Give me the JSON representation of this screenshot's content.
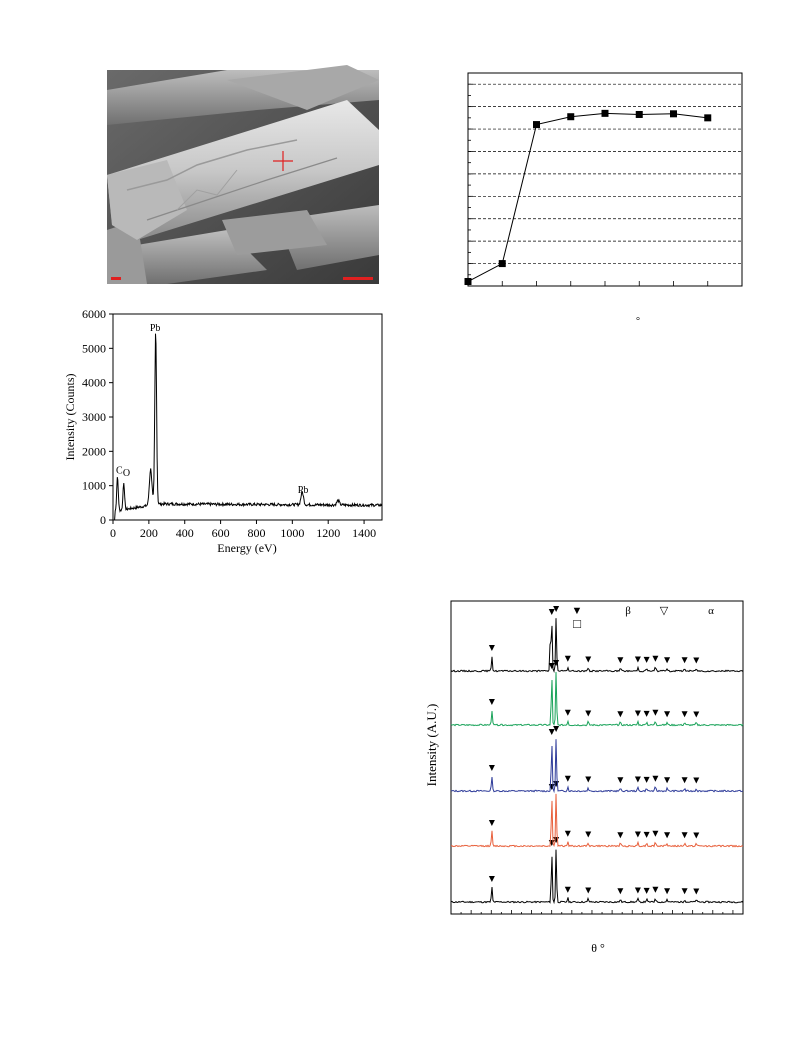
{
  "sem_image": {
    "description_icon": "sem-micrograph-icon",
    "marker_color": "#e02020"
  },
  "chart_data": [
    {
      "type": "line",
      "x": [
        0,
        1,
        2,
        3,
        4,
        5,
        6,
        7
      ],
      "y": [
        0.2,
        1.0,
        7.2,
        7.55,
        7.7,
        7.65,
        7.68,
        7.5
      ],
      "xlim": [
        0,
        8
      ],
      "ylim": [
        0,
        9.5
      ],
      "grid": true,
      "xlabel_visible": "°",
      "marker": "square"
    },
    {
      "type": "line",
      "title": "",
      "xlabel": "Energy (eV)",
      "ylabel": "Intensity (Counts)",
      "xlim": [
        0,
        1500
      ],
      "ylim": [
        0,
        6000
      ],
      "xticks": [
        0,
        200,
        400,
        600,
        800,
        1000,
        1200,
        1400
      ],
      "yticks": [
        0,
        1000,
        2000,
        3000,
        4000,
        5000,
        6000
      ],
      "annotations": [
        {
          "text": "C",
          "x": 35,
          "y": 1350
        },
        {
          "text": "O",
          "x": 75,
          "y": 1280
        },
        {
          "text": "Pb",
          "x": 235,
          "y": 5500
        },
        {
          "text": "Pb",
          "x": 1060,
          "y": 780
        }
      ],
      "peaks": [
        {
          "x": 25,
          "y": 1250
        },
        {
          "x": 60,
          "y": 1050
        },
        {
          "x": 210,
          "y": 1300
        },
        {
          "x": 238,
          "y": 5300
        },
        {
          "x": 1055,
          "y": 620
        },
        {
          "x": 1255,
          "y": 380
        }
      ],
      "baseline": 250
    },
    {
      "type": "line",
      "ylabel": "Intensity (A.U.)",
      "xlabel": "θ °",
      "legend_symbols": [
        "▼",
        "β",
        "▽",
        "α",
        "□"
      ],
      "series_colors": [
        "#000000",
        "#e8603c",
        "#2f3c9a",
        "#1aa35a",
        "#000000"
      ],
      "series_baselines": [
        0.1,
        0.3,
        0.5,
        0.7,
        0.9
      ],
      "peak_positions": [
        0.14,
        0.345,
        0.36,
        0.4,
        0.47,
        0.58,
        0.64,
        0.67,
        0.7,
        0.74,
        0.8,
        0.84
      ],
      "peak_heights": [
        0.25,
        0.85,
        0.9,
        0.3,
        0.25,
        0.2,
        0.25,
        0.22,
        0.3,
        0.2,
        0.2,
        0.18
      ]
    }
  ]
}
